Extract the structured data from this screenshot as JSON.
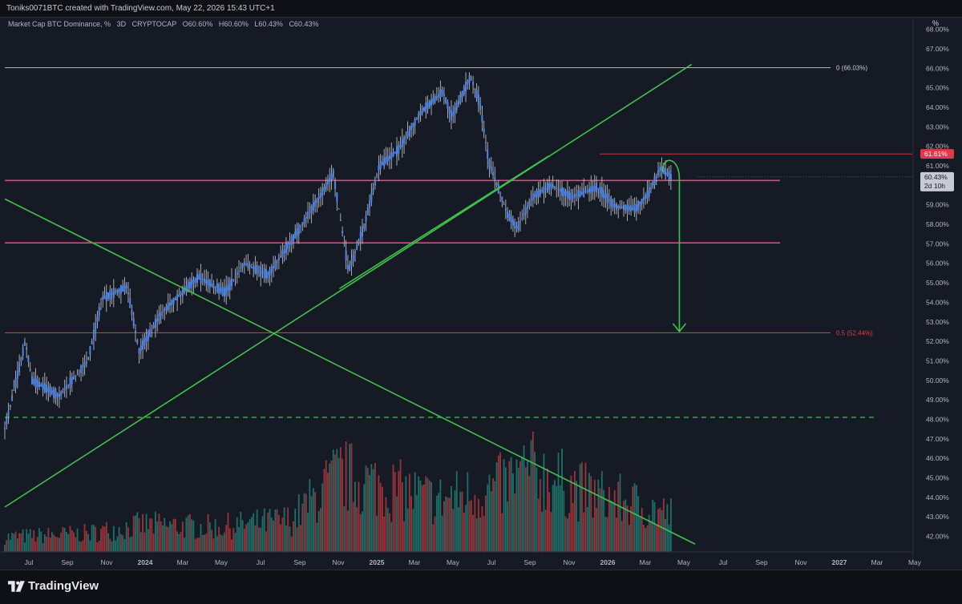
{
  "header": {
    "attribution": "Toniks0071BTC created with TradingView.com, May 22, 2026 15:43 UTC+1"
  },
  "legend": {
    "symbol": "Market Cap BTC Dominance, %",
    "interval": "3D",
    "exchange": "CRYPTOCAP",
    "open": "O60.60%",
    "high": "H60.60%",
    "low": "L60.43%",
    "close": "C60.43%"
  },
  "price_axis": {
    "unit_label": "%"
  },
  "brand": {
    "name": "TradingView"
  },
  "colors": {
    "background": "#161a25",
    "candle": "#4f86e8",
    "wick": "#c9cdd6",
    "trendline": "#3fc24a",
    "level_pink": "#e0457b",
    "level_red": "#e2384e",
    "level_white": "#c7cad1",
    "volume_up": "#1f7f73",
    "volume_down": "#b13a3d",
    "price_badge": "#c7cad3"
  },
  "chart_data": {
    "type": "candlestick",
    "title": "Market Cap BTC Dominance, %",
    "interval": "3D",
    "ylabel": "%",
    "ylim": [
      41.2,
      68.6
    ],
    "y_ticks": [
      "68.00%",
      "67.00%",
      "66.00%",
      "65.00%",
      "64.00%",
      "63.00%",
      "62.00%",
      "61.00%",
      "60.00%",
      "59.00%",
      "58.00%",
      "57.00%",
      "56.00%",
      "55.00%",
      "54.00%",
      "53.00%",
      "52.00%",
      "51.00%",
      "50.00%",
      "49.00%",
      "48.00%",
      "47.00%",
      "46.00%",
      "45.00%",
      "44.00%",
      "43.00%",
      "42.00%"
    ],
    "x_ticks": [
      "Jul",
      "Sep",
      "Nov",
      "2024",
      "Mar",
      "May",
      "Jul",
      "Sep",
      "Nov",
      "2025",
      "Mar",
      "May",
      "Jul",
      "Sep",
      "Nov",
      "2026",
      "Mar",
      "May",
      "Jul",
      "Sep",
      "Nov",
      "2027",
      "Mar",
      "May"
    ],
    "x_range": [
      "2023-05-17",
      "2027-06-25"
    ],
    "price_path": [
      [
        "2023-05-17",
        47.5
      ],
      [
        "2023-06-20",
        52.0
      ],
      [
        "2023-07-01",
        50.0
      ],
      [
        "2023-08-15",
        49.2
      ],
      [
        "2023-10-01",
        51.0
      ],
      [
        "2023-10-25",
        54.2
      ],
      [
        "2023-12-05",
        54.8
      ],
      [
        "2023-12-25",
        51.5
      ],
      [
        "2024-02-01",
        53.5
      ],
      [
        "2024-04-01",
        55.3
      ],
      [
        "2024-05-15",
        54.5
      ],
      [
        "2024-06-15",
        56.0
      ],
      [
        "2024-07-25",
        55.4
      ],
      [
        "2024-09-05",
        57.3
      ],
      [
        "2024-10-20",
        59.5
      ],
      [
        "2024-11-10",
        60.6
      ],
      [
        "2024-12-05",
        55.6
      ],
      [
        "2024-12-30",
        57.8
      ],
      [
        "2025-01-25",
        61.0
      ],
      [
        "2025-02-25",
        61.8
      ],
      [
        "2025-04-05",
        63.8
      ],
      [
        "2025-05-10",
        64.8
      ],
      [
        "2025-05-25",
        63.5
      ],
      [
        "2025-06-25",
        65.6
      ],
      [
        "2025-07-10",
        64.2
      ],
      [
        "2025-07-25",
        61.2
      ],
      [
        "2025-08-25",
        58.5
      ],
      [
        "2025-09-10",
        57.8
      ],
      [
        "2025-10-05",
        59.4
      ],
      [
        "2025-11-05",
        60.0
      ],
      [
        "2025-12-10",
        59.4
      ],
      [
        "2026-01-20",
        59.9
      ],
      [
        "2026-02-20",
        58.9
      ],
      [
        "2026-03-25",
        58.8
      ],
      [
        "2026-04-15",
        59.6
      ],
      [
        "2026-05-05",
        60.9
      ],
      [
        "2026-05-22",
        60.43
      ]
    ],
    "volume_range": [
      0,
      1
    ],
    "volume_path": [
      [
        "2023-05-17",
        0.12
      ],
      [
        "2023-10-01",
        0.15
      ],
      [
        "2024-01-01",
        0.22
      ],
      [
        "2024-05-01",
        0.2
      ],
      [
        "2024-09-01",
        0.26
      ],
      [
        "2024-11-20",
        0.62
      ],
      [
        "2025-01-15",
        0.55
      ],
      [
        "2025-05-01",
        0.42
      ],
      [
        "2025-08-01",
        0.5
      ],
      [
        "2025-10-01",
        0.66
      ],
      [
        "2026-01-01",
        0.48
      ],
      [
        "2026-03-15",
        0.4
      ],
      [
        "2026-05-22",
        0.3
      ]
    ],
    "horizontal_levels": [
      {
        "value": 66.03,
        "label": "0 (66.03%)",
        "style": "white"
      },
      {
        "value": 61.61,
        "label": "61.61%",
        "style": "red",
        "badge": true
      },
      {
        "value": 60.25,
        "label": "",
        "style": "pink"
      },
      {
        "value": 57.05,
        "label": "",
        "style": "pink"
      },
      {
        "value": 52.44,
        "label": "0.5 (52.44%)",
        "style": "red"
      },
      {
        "value": 48.1,
        "label": "",
        "style": "dashed-green"
      }
    ],
    "trendlines": [
      {
        "from": [
          "2023-05-17",
          43.5
        ],
        "to": [
          "2026-06-25",
          66.2
        ]
      },
      {
        "from": [
          "2023-05-17",
          59.3
        ],
        "to": [
          "2026-07-01",
          41.6
        ]
      },
      {
        "from": [
          "2024-11-20",
          54.7
        ],
        "to": [
          "2025-11-01",
          61.5
        ]
      }
    ],
    "projection": {
      "from": [
        "2026-05-08",
        61.0
      ],
      "peak": [
        "2026-05-22",
        60.9
      ],
      "to": [
        "2026-06-05",
        52.5
      ]
    },
    "last_price": {
      "value": "60.43%",
      "countdown": "2d 10h"
    }
  }
}
